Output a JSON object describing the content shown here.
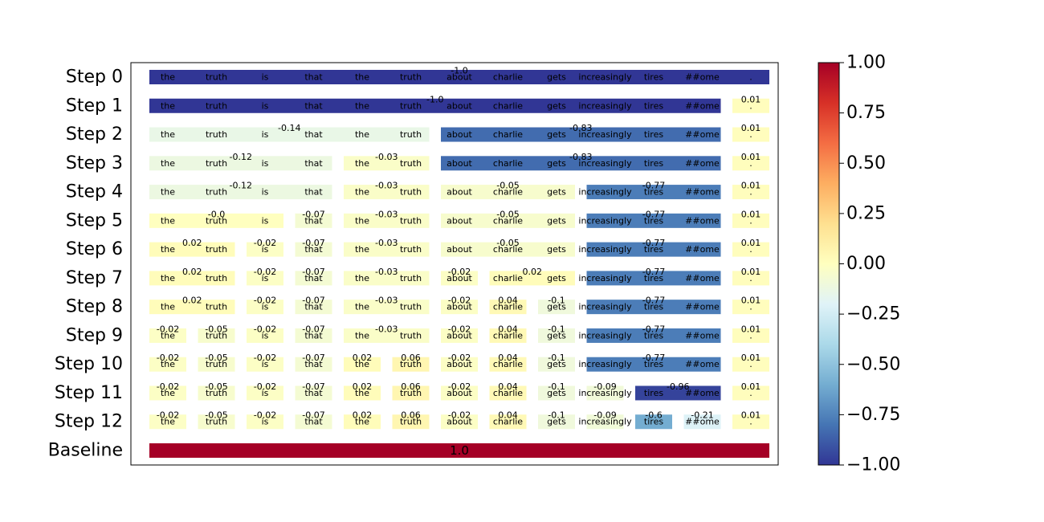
{
  "chart_data": {
    "type": "heatmap",
    "title": "",
    "xlabel": "",
    "ylabel": "",
    "tokens": [
      "the",
      "truth",
      "is",
      "that",
      "the",
      "truth",
      "about",
      "charlie",
      "gets",
      "increasingly",
      "tires",
      "##ome",
      "."
    ],
    "row_labels": [
      "Step 0",
      "Step 1",
      "Step 2",
      "Step 3",
      "Step 4",
      "Step 5",
      "Step 6",
      "Step 7",
      "Step 8",
      "Step 9",
      "Step 10",
      "Step 11",
      "Step 12",
      "Baseline"
    ],
    "rows": [
      {
        "segments": [
          {
            "start": 0,
            "end": 12,
            "value": -1.0,
            "label": "-1.0"
          }
        ]
      },
      {
        "segments": [
          {
            "start": 0,
            "end": 11,
            "value": -1.0,
            "label": "-1.0"
          },
          {
            "start": 12,
            "end": 12,
            "value": 0.01,
            "label": "0.01"
          }
        ]
      },
      {
        "segments": [
          {
            "start": 0,
            "end": 5,
            "value": -0.14,
            "label": "-0.14"
          },
          {
            "start": 6,
            "end": 11,
            "value": -0.83,
            "label": "-0.83"
          },
          {
            "start": 12,
            "end": 12,
            "value": 0.01,
            "label": "0.01"
          }
        ]
      },
      {
        "segments": [
          {
            "start": 0,
            "end": 3,
            "value": -0.12,
            "label": "-0.12"
          },
          {
            "start": 4,
            "end": 5,
            "value": -0.03,
            "label": "-0.03"
          },
          {
            "start": 6,
            "end": 11,
            "value": -0.83,
            "label": "-0.83"
          },
          {
            "start": 12,
            "end": 12,
            "value": 0.01,
            "label": "0.01"
          }
        ]
      },
      {
        "segments": [
          {
            "start": 0,
            "end": 3,
            "value": -0.12,
            "label": "-0.12"
          },
          {
            "start": 4,
            "end": 5,
            "value": -0.03,
            "label": "-0.03"
          },
          {
            "start": 6,
            "end": 8,
            "value": -0.05,
            "label": "-0.05"
          },
          {
            "start": 9,
            "end": 11,
            "value": -0.77,
            "label": "-0.77"
          },
          {
            "start": 12,
            "end": 12,
            "value": 0.01,
            "label": "0.01"
          }
        ]
      },
      {
        "segments": [
          {
            "start": 0,
            "end": 2,
            "value": 0.0,
            "label": "-0.0"
          },
          {
            "start": 3,
            "end": 3,
            "value": -0.07,
            "label": "-0.07"
          },
          {
            "start": 4,
            "end": 5,
            "value": -0.03,
            "label": "-0.03"
          },
          {
            "start": 6,
            "end": 8,
            "value": -0.05,
            "label": "-0.05"
          },
          {
            "start": 9,
            "end": 11,
            "value": -0.77,
            "label": "-0.77"
          },
          {
            "start": 12,
            "end": 12,
            "value": 0.01,
            "label": "0.01"
          }
        ]
      },
      {
        "segments": [
          {
            "start": 0,
            "end": 1,
            "value": 0.02,
            "label": "0.02"
          },
          {
            "start": 2,
            "end": 2,
            "value": -0.02,
            "label": "-0.02"
          },
          {
            "start": 3,
            "end": 3,
            "value": -0.07,
            "label": "-0.07"
          },
          {
            "start": 4,
            "end": 5,
            "value": -0.03,
            "label": "-0.03"
          },
          {
            "start": 6,
            "end": 8,
            "value": -0.05,
            "label": "-0.05"
          },
          {
            "start": 9,
            "end": 11,
            "value": -0.77,
            "label": "-0.77"
          },
          {
            "start": 12,
            "end": 12,
            "value": 0.01,
            "label": "0.01"
          }
        ]
      },
      {
        "segments": [
          {
            "start": 0,
            "end": 1,
            "value": 0.02,
            "label": "0.02"
          },
          {
            "start": 2,
            "end": 2,
            "value": -0.02,
            "label": "-0.02"
          },
          {
            "start": 3,
            "end": 3,
            "value": -0.07,
            "label": "-0.07"
          },
          {
            "start": 4,
            "end": 5,
            "value": -0.03,
            "label": "-0.03"
          },
          {
            "start": 6,
            "end": 6,
            "value": -0.02,
            "label": "-0.02"
          },
          {
            "start": 7,
            "end": 8,
            "value": 0.02,
            "label": "0.02"
          },
          {
            "start": 9,
            "end": 11,
            "value": -0.77,
            "label": "-0.77"
          },
          {
            "start": 12,
            "end": 12,
            "value": 0.01,
            "label": "0.01"
          }
        ]
      },
      {
        "segments": [
          {
            "start": 0,
            "end": 1,
            "value": 0.02,
            "label": "0.02"
          },
          {
            "start": 2,
            "end": 2,
            "value": -0.02,
            "label": "-0.02"
          },
          {
            "start": 3,
            "end": 3,
            "value": -0.07,
            "label": "-0.07"
          },
          {
            "start": 4,
            "end": 5,
            "value": -0.03,
            "label": "-0.03"
          },
          {
            "start": 6,
            "end": 6,
            "value": -0.02,
            "label": "-0.02"
          },
          {
            "start": 7,
            "end": 7,
            "value": 0.04,
            "label": "0.04"
          },
          {
            "start": 8,
            "end": 8,
            "value": -0.1,
            "label": "-0.1"
          },
          {
            "start": 9,
            "end": 11,
            "value": -0.77,
            "label": "-0.77"
          },
          {
            "start": 12,
            "end": 12,
            "value": 0.01,
            "label": "0.01"
          }
        ]
      },
      {
        "segments": [
          {
            "start": 0,
            "end": 0,
            "value": -0.02,
            "label": "-0.02"
          },
          {
            "start": 1,
            "end": 1,
            "value": -0.05,
            "label": "-0.05"
          },
          {
            "start": 2,
            "end": 2,
            "value": -0.02,
            "label": "-0.02"
          },
          {
            "start": 3,
            "end": 3,
            "value": -0.07,
            "label": "-0.07"
          },
          {
            "start": 4,
            "end": 5,
            "value": -0.03,
            "label": "-0.03"
          },
          {
            "start": 6,
            "end": 6,
            "value": -0.02,
            "label": "-0.02"
          },
          {
            "start": 7,
            "end": 7,
            "value": 0.04,
            "label": "0.04"
          },
          {
            "start": 8,
            "end": 8,
            "value": -0.1,
            "label": "-0.1"
          },
          {
            "start": 9,
            "end": 11,
            "value": -0.77,
            "label": "-0.77"
          },
          {
            "start": 12,
            "end": 12,
            "value": 0.01,
            "label": "0.01"
          }
        ]
      },
      {
        "segments": [
          {
            "start": 0,
            "end": 0,
            "value": -0.02,
            "label": "-0.02"
          },
          {
            "start": 1,
            "end": 1,
            "value": -0.05,
            "label": "-0.05"
          },
          {
            "start": 2,
            "end": 2,
            "value": -0.02,
            "label": "-0.02"
          },
          {
            "start": 3,
            "end": 3,
            "value": -0.07,
            "label": "-0.07"
          },
          {
            "start": 4,
            "end": 4,
            "value": 0.02,
            "label": "0.02"
          },
          {
            "start": 5,
            "end": 5,
            "value": 0.06,
            "label": "0.06"
          },
          {
            "start": 6,
            "end": 6,
            "value": -0.02,
            "label": "-0.02"
          },
          {
            "start": 7,
            "end": 7,
            "value": 0.04,
            "label": "0.04"
          },
          {
            "start": 8,
            "end": 8,
            "value": -0.1,
            "label": "-0.1"
          },
          {
            "start": 9,
            "end": 11,
            "value": -0.77,
            "label": "-0.77"
          },
          {
            "start": 12,
            "end": 12,
            "value": 0.01,
            "label": "0.01"
          }
        ]
      },
      {
        "segments": [
          {
            "start": 0,
            "end": 0,
            "value": -0.02,
            "label": "-0.02"
          },
          {
            "start": 1,
            "end": 1,
            "value": -0.05,
            "label": "-0.05"
          },
          {
            "start": 2,
            "end": 2,
            "value": -0.02,
            "label": "-0.02"
          },
          {
            "start": 3,
            "end": 3,
            "value": -0.07,
            "label": "-0.07"
          },
          {
            "start": 4,
            "end": 4,
            "value": 0.02,
            "label": "0.02"
          },
          {
            "start": 5,
            "end": 5,
            "value": 0.06,
            "label": "0.06"
          },
          {
            "start": 6,
            "end": 6,
            "value": -0.02,
            "label": "-0.02"
          },
          {
            "start": 7,
            "end": 7,
            "value": 0.04,
            "label": "0.04"
          },
          {
            "start": 8,
            "end": 8,
            "value": -0.1,
            "label": "-0.1"
          },
          {
            "start": 9,
            "end": 9,
            "value": -0.09,
            "label": "-0.09"
          },
          {
            "start": 10,
            "end": 11,
            "value": -0.96,
            "label": "-0.96"
          },
          {
            "start": 12,
            "end": 12,
            "value": 0.01,
            "label": "0.01"
          }
        ]
      },
      {
        "segments": [
          {
            "start": 0,
            "end": 0,
            "value": -0.02,
            "label": "-0.02"
          },
          {
            "start": 1,
            "end": 1,
            "value": -0.05,
            "label": "-0.05"
          },
          {
            "start": 2,
            "end": 2,
            "value": -0.02,
            "label": "-0.02"
          },
          {
            "start": 3,
            "end": 3,
            "value": -0.07,
            "label": "-0.07"
          },
          {
            "start": 4,
            "end": 4,
            "value": 0.02,
            "label": "0.02"
          },
          {
            "start": 5,
            "end": 5,
            "value": 0.06,
            "label": "0.06"
          },
          {
            "start": 6,
            "end": 6,
            "value": -0.02,
            "label": "-0.02"
          },
          {
            "start": 7,
            "end": 7,
            "value": 0.04,
            "label": "0.04"
          },
          {
            "start": 8,
            "end": 8,
            "value": -0.1,
            "label": "-0.1"
          },
          {
            "start": 9,
            "end": 9,
            "value": -0.09,
            "label": "-0.09"
          },
          {
            "start": 10,
            "end": 10,
            "value": -0.6,
            "label": "-0.6"
          },
          {
            "start": 11,
            "end": 11,
            "value": -0.21,
            "label": "-0.21"
          },
          {
            "start": 12,
            "end": 12,
            "value": 0.01,
            "label": "0.01"
          }
        ]
      },
      {
        "segments": [
          {
            "start": 0,
            "end": 12,
            "value": 1.0,
            "label": "1.0"
          }
        ]
      }
    ],
    "colorbar": {
      "colormap": "RdYlBu_r",
      "range": [
        -1.0,
        1.0
      ],
      "ticks": [
        "1.00",
        "0.75",
        "0.50",
        "0.25",
        "0.00",
        "−0.25",
        "−0.50",
        "−0.75",
        "−1.00"
      ],
      "tick_values": [
        1.0,
        0.75,
        0.5,
        0.25,
        0.0,
        -0.25,
        -0.5,
        -0.75,
        -1.0
      ]
    },
    "colors": {
      "dark_blue": "#313695",
      "light_blue": "#abd9e9",
      "pale_yellow": "#ffffbf",
      "dark_red": "#a50026"
    }
  }
}
